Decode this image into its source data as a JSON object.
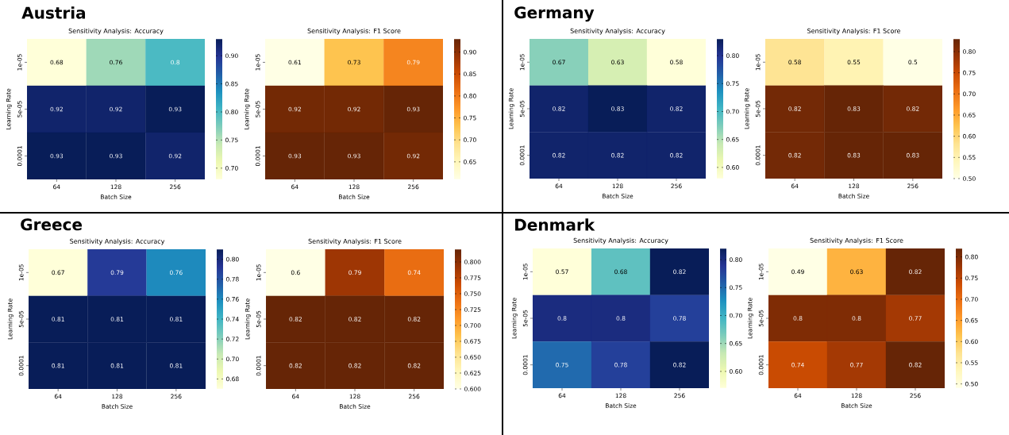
{
  "chart_data": [
    {
      "type": "heatmap",
      "title": "Austria",
      "subtitle": "Sensitivity Analysis: Accuracy",
      "xlabel": "Batch Size",
      "ylabel": "Learning Rate",
      "categories": [
        "64",
        "128",
        "256"
      ],
      "y_categories": [
        "1e-05",
        "5e-05",
        "0.0001"
      ],
      "cells": [
        [
          0.68,
          0.76,
          0.8
        ],
        [
          0.92,
          0.92,
          0.93
        ],
        [
          0.93,
          0.93,
          0.92
        ]
      ],
      "clim": [
        0.68,
        0.93
      ],
      "cticks": [
        {
          "value": 0.7,
          "label": "0.70"
        },
        {
          "value": 0.75,
          "label": "0.75"
        },
        {
          "value": 0.8,
          "label": "0.80"
        },
        {
          "value": 0.85,
          "label": "0.85"
        },
        {
          "value": 0.9,
          "label": "0.90"
        }
      ],
      "colors": [
        "#ffffd9",
        "#edf8b1",
        "#c7e9b4",
        "#7fcdbb",
        "#41b6c4",
        "#1d91c0",
        "#225ea8",
        "#253494",
        "#081d58"
      ],
      "data_labels": true
    },
    {
      "type": "heatmap",
      "subtitle": "Sensitivity Analysis: F1 Score",
      "xlabel": "Batch Size",
      "ylabel": "Learning Rate",
      "categories": [
        "64",
        "128",
        "256"
      ],
      "y_categories": [
        "1e-05",
        "5e-05",
        "0.0001"
      ],
      "cells": [
        [
          0.61,
          0.73,
          0.79
        ],
        [
          0.92,
          0.92,
          0.93
        ],
        [
          0.93,
          0.93,
          0.92
        ]
      ],
      "clim": [
        0.61,
        0.93
      ],
      "cticks": [
        {
          "value": 0.65,
          "label": "0.65"
        },
        {
          "value": 0.7,
          "label": "0.70"
        },
        {
          "value": 0.75,
          "label": "0.75"
        },
        {
          "value": 0.8,
          "label": "0.80"
        },
        {
          "value": 0.85,
          "label": "0.85"
        },
        {
          "value": 0.9,
          "label": "0.90"
        }
      ],
      "colors": [
        "#ffffe5",
        "#fff7bc",
        "#fee391",
        "#fec44f",
        "#fe9929",
        "#ec7014",
        "#cc4c02",
        "#993404",
        "#662506"
      ],
      "data_labels": true
    },
    {
      "type": "heatmap",
      "title": "Germany",
      "subtitle": "Sensitivity Analysis: Accuracy",
      "xlabel": "Batch Size",
      "ylabel": "Learning Rate",
      "categories": [
        "64",
        "128",
        "256"
      ],
      "y_categories": [
        "1e-05",
        "5e-05",
        "0.0001"
      ],
      "cells": [
        [
          0.67,
          0.63,
          0.58
        ],
        [
          0.82,
          0.83,
          0.82
        ],
        [
          0.82,
          0.82,
          0.82
        ]
      ],
      "clim": [
        0.58,
        0.83
      ],
      "cticks": [
        {
          "value": 0.6,
          "label": "0.60"
        },
        {
          "value": 0.65,
          "label": "0.65"
        },
        {
          "value": 0.7,
          "label": "0.70"
        },
        {
          "value": 0.75,
          "label": "0.75"
        },
        {
          "value": 0.8,
          "label": "0.80"
        }
      ],
      "colors": [
        "#ffffd9",
        "#edf8b1",
        "#c7e9b4",
        "#7fcdbb",
        "#41b6c4",
        "#1d91c0",
        "#225ea8",
        "#253494",
        "#081d58"
      ],
      "data_labels": true
    },
    {
      "type": "heatmap",
      "subtitle": "Sensitivity Analysis: F1 Score",
      "xlabel": "Batch Size",
      "ylabel": "Learning Rate",
      "categories": [
        "64",
        "128",
        "256"
      ],
      "y_categories": [
        "1e-05",
        "5e-05",
        "0.0001"
      ],
      "cells": [
        [
          0.58,
          0.55,
          0.5
        ],
        [
          0.82,
          0.83,
          0.82
        ],
        [
          0.82,
          0.83,
          0.83
        ]
      ],
      "clim": [
        0.5,
        0.83
      ],
      "cticks": [
        {
          "value": 0.5,
          "label": "0.50"
        },
        {
          "value": 0.55,
          "label": "0.55"
        },
        {
          "value": 0.6,
          "label": "0.60"
        },
        {
          "value": 0.65,
          "label": "0.65"
        },
        {
          "value": 0.7,
          "label": "0.70"
        },
        {
          "value": 0.75,
          "label": "0.75"
        },
        {
          "value": 0.8,
          "label": "0.80"
        }
      ],
      "colors": [
        "#ffffe5",
        "#fff7bc",
        "#fee391",
        "#fec44f",
        "#fe9929",
        "#ec7014",
        "#cc4c02",
        "#993404",
        "#662506"
      ],
      "data_labels": true
    },
    {
      "type": "heatmap",
      "title": "Greece",
      "subtitle": "Sensitivity Analysis: Accuracy",
      "xlabel": "Batch Size",
      "ylabel": "Learning Rate",
      "categories": [
        "64",
        "128",
        "256"
      ],
      "y_categories": [
        "1e-05",
        "5e-05",
        "0.0001"
      ],
      "cells": [
        [
          0.67,
          0.79,
          0.76
        ],
        [
          0.81,
          0.81,
          0.81
        ],
        [
          0.81,
          0.81,
          0.81
        ]
      ],
      "clim": [
        0.67,
        0.81
      ],
      "cticks": [
        {
          "value": 0.68,
          "label": "0.68"
        },
        {
          "value": 0.7,
          "label": "0.70"
        },
        {
          "value": 0.72,
          "label": "0.72"
        },
        {
          "value": 0.74,
          "label": "0.74"
        },
        {
          "value": 0.76,
          "label": "0.76"
        },
        {
          "value": 0.78,
          "label": "0.78"
        },
        {
          "value": 0.8,
          "label": "0.80"
        }
      ],
      "colors": [
        "#ffffd9",
        "#edf8b1",
        "#c7e9b4",
        "#7fcdbb",
        "#41b6c4",
        "#1d91c0",
        "#225ea8",
        "#253494",
        "#081d58"
      ],
      "data_labels": true
    },
    {
      "type": "heatmap",
      "subtitle": "Sensitivity Analysis: F1 Score",
      "xlabel": "Batch Size",
      "ylabel": "Learning Rate",
      "categories": [
        "64",
        "128",
        "256"
      ],
      "y_categories": [
        "1e-05",
        "5e-05",
        "0.0001"
      ],
      "cells": [
        [
          0.6,
          0.79,
          0.74
        ],
        [
          0.82,
          0.82,
          0.82
        ],
        [
          0.82,
          0.82,
          0.82
        ]
      ],
      "clim": [
        0.6,
        0.82
      ],
      "cticks": [
        {
          "value": 0.6,
          "label": "0.600"
        },
        {
          "value": 0.625,
          "label": "0.625"
        },
        {
          "value": 0.65,
          "label": "0.650"
        },
        {
          "value": 0.675,
          "label": "0.675"
        },
        {
          "value": 0.7,
          "label": "0.700"
        },
        {
          "value": 0.725,
          "label": "0.725"
        },
        {
          "value": 0.75,
          "label": "0.750"
        },
        {
          "value": 0.775,
          "label": "0.775"
        },
        {
          "value": 0.8,
          "label": "0.800"
        }
      ],
      "colors": [
        "#ffffe5",
        "#fff7bc",
        "#fee391",
        "#fec44f",
        "#fe9929",
        "#ec7014",
        "#cc4c02",
        "#993404",
        "#662506"
      ],
      "data_labels": true
    },
    {
      "type": "heatmap",
      "title": "Denmark",
      "subtitle": "Sensitivity Analysis: Accuracy",
      "xlabel": "Batch Size",
      "ylabel": "Learning Rate",
      "categories": [
        "64",
        "128",
        "256"
      ],
      "y_categories": [
        "1e-05",
        "5e-05",
        "0.0001"
      ],
      "cells": [
        [
          0.57,
          0.68,
          0.82
        ],
        [
          0.8,
          0.8,
          0.78
        ],
        [
          0.75,
          0.78,
          0.82
        ]
      ],
      "clim": [
        0.57,
        0.82
      ],
      "cticks": [
        {
          "value": 0.6,
          "label": "0.60"
        },
        {
          "value": 0.65,
          "label": "0.65"
        },
        {
          "value": 0.7,
          "label": "0.70"
        },
        {
          "value": 0.75,
          "label": "0.75"
        },
        {
          "value": 0.8,
          "label": "0.80"
        }
      ],
      "colors": [
        "#ffffd9",
        "#edf8b1",
        "#c7e9b4",
        "#7fcdbb",
        "#41b6c4",
        "#1d91c0",
        "#225ea8",
        "#253494",
        "#081d58"
      ],
      "data_labels": true
    },
    {
      "type": "heatmap",
      "subtitle": "Sensitivity Analysis: F1 Score",
      "xlabel": "Batch Size",
      "ylabel": "Learning Rate",
      "categories": [
        "64",
        "128",
        "256"
      ],
      "y_categories": [
        "1e-05",
        "5e-05",
        "0.0001"
      ],
      "cells": [
        [
          0.49,
          0.63,
          0.82
        ],
        [
          0.8,
          0.8,
          0.77
        ],
        [
          0.74,
          0.77,
          0.82
        ]
      ],
      "clim": [
        0.49,
        0.82
      ],
      "cticks": [
        {
          "value": 0.5,
          "label": "0.50"
        },
        {
          "value": 0.55,
          "label": "0.55"
        },
        {
          "value": 0.6,
          "label": "0.60"
        },
        {
          "value": 0.65,
          "label": "0.65"
        },
        {
          "value": 0.7,
          "label": "0.70"
        },
        {
          "value": 0.75,
          "label": "0.75"
        },
        {
          "value": 0.8,
          "label": "0.80"
        }
      ],
      "colors": [
        "#ffffe5",
        "#fff7bc",
        "#fee391",
        "#fec44f",
        "#fe9929",
        "#ec7014",
        "#cc4c02",
        "#993404",
        "#662506"
      ],
      "data_labels": true
    }
  ]
}
